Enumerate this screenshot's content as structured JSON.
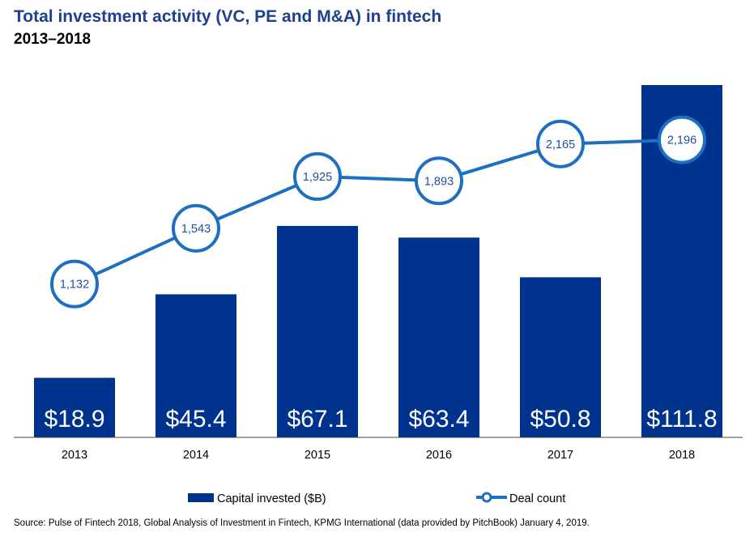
{
  "title": "Total investment activity (VC, PE and M&A) in fintech",
  "subtitle": "2013–2018",
  "source": "Source: Pulse of Fintech 2018, Global Analysis of Investment in Fintech, KPMG International (data provided by PitchBook) January 4, 2019.",
  "colors": {
    "bar": "#00338d",
    "line": "#1e6fc0",
    "title": "#1f3f8f"
  },
  "chart_data": {
    "type": "bar",
    "categories": [
      "2013",
      "2014",
      "2015",
      "2016",
      "2017",
      "2018"
    ],
    "series": [
      {
        "name": "Capital invested ($B)",
        "type": "bar",
        "axis": "left",
        "values": [
          18.9,
          45.4,
          67.1,
          63.4,
          50.8,
          111.8
        ],
        "labels": [
          "$18.9",
          "$45.4",
          "$67.1",
          "$63.4",
          "$50.8",
          "$111.8"
        ]
      },
      {
        "name": "Deal count",
        "type": "line",
        "axis": "right",
        "values": [
          1132,
          1543,
          1925,
          1893,
          2165,
          2196
        ],
        "labels": [
          "1,132",
          "1,543",
          "1,925",
          "1,893",
          "2,165",
          "2,196"
        ]
      }
    ],
    "ylim_left": [
      0,
      111.8
    ],
    "ylim_right": [
      0,
      2600
    ],
    "legend_position": "bottom",
    "grid": false
  }
}
